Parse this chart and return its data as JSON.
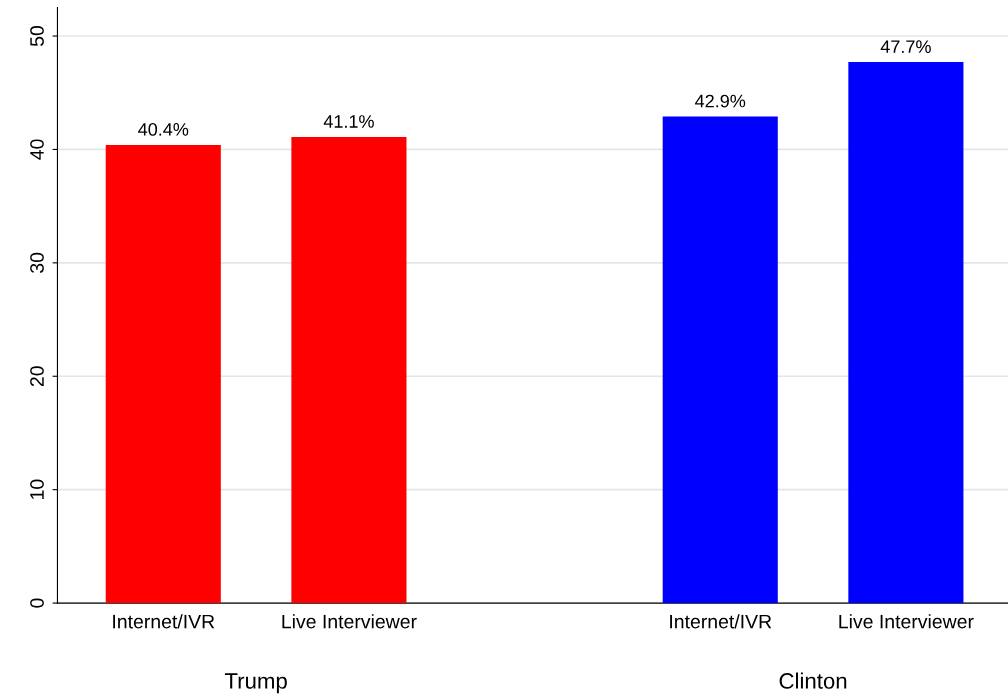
{
  "chart_data": {
    "type": "bar",
    "categories": [
      "Internet/IVR",
      "Live Interviewer",
      null,
      "Internet/IVR",
      "Live Interviewer"
    ],
    "series": [
      {
        "color": "#ff0000",
        "values": [
          40.4,
          41.1,
          null,
          null,
          null
        ],
        "value_labels": [
          "40.4%",
          "41.1%",
          null,
          null,
          null
        ]
      },
      {
        "color": "#0000ff",
        "values": [
          null,
          null,
          null,
          42.9,
          47.7
        ],
        "value_labels": [
          null,
          null,
          null,
          "42.9%",
          "47.7%"
        ]
      }
    ],
    "ylim": [
      0,
      52.5
    ],
    "yticks": [
      0,
      10,
      20,
      30,
      40,
      50
    ],
    "grid": "y",
    "annotations": [
      "Trump",
      "Clinton"
    ]
  }
}
